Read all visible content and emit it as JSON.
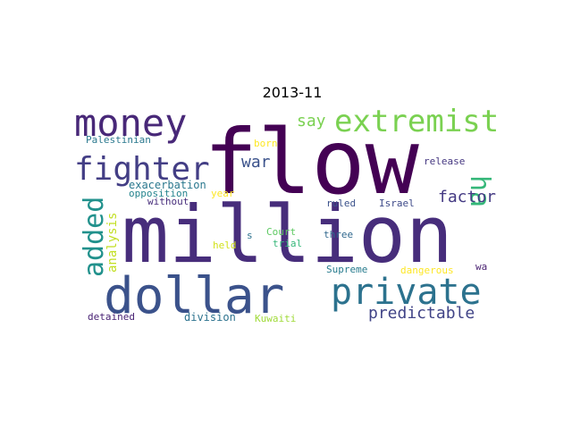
{
  "chart_data": {
    "type": "wordcloud",
    "title": "2013-11",
    "words": [
      {
        "text": "flow",
        "color": "#440154"
      },
      {
        "text": "million",
        "color": "#472d7b"
      },
      {
        "text": "dollar",
        "color": "#3b528b"
      },
      {
        "text": "money",
        "color": "#482878"
      },
      {
        "text": "extremist",
        "color": "#7ad151"
      },
      {
        "text": "private",
        "color": "#2c728e"
      },
      {
        "text": "fighter",
        "color": "#433e85"
      },
      {
        "text": "added",
        "color": "#21918c"
      },
      {
        "text": "ha",
        "color": "#35b779"
      },
      {
        "text": "predictable",
        "color": "#414487"
      },
      {
        "text": "factor",
        "color": "#443a83"
      },
      {
        "text": "say",
        "color": "#7ad151"
      },
      {
        "text": "war",
        "color": "#3b528b"
      },
      {
        "text": "analysis",
        "color": "#c2df23"
      },
      {
        "text": "exacerbation",
        "color": "#2a788e"
      },
      {
        "text": "opposition",
        "color": "#25848e"
      },
      {
        "text": "year",
        "color": "#fde725"
      },
      {
        "text": "without",
        "color": "#472d7b"
      },
      {
        "text": "ruled",
        "color": "#3b528b"
      },
      {
        "text": "Israel",
        "color": "#3e4a89"
      },
      {
        "text": "Palestinian",
        "color": "#2a788e"
      },
      {
        "text": "born",
        "color": "#fde725"
      },
      {
        "text": "release",
        "color": "#453781"
      },
      {
        "text": "Court",
        "color": "#5ec962"
      },
      {
        "text": "s",
        "color": "#2c728e"
      },
      {
        "text": "trial",
        "color": "#35b779"
      },
      {
        "text": "three",
        "color": "#31688e"
      },
      {
        "text": "held",
        "color": "#d2e21b"
      },
      {
        "text": "Supreme",
        "color": "#287c8e"
      },
      {
        "text": "dangerous",
        "color": "#fde725"
      },
      {
        "text": "wa",
        "color": "#481f70"
      },
      {
        "text": "detained",
        "color": "#482173"
      },
      {
        "text": "division",
        "color": "#2c728e"
      },
      {
        "text": "Kuwaiti",
        "color": "#a0da39"
      }
    ]
  }
}
